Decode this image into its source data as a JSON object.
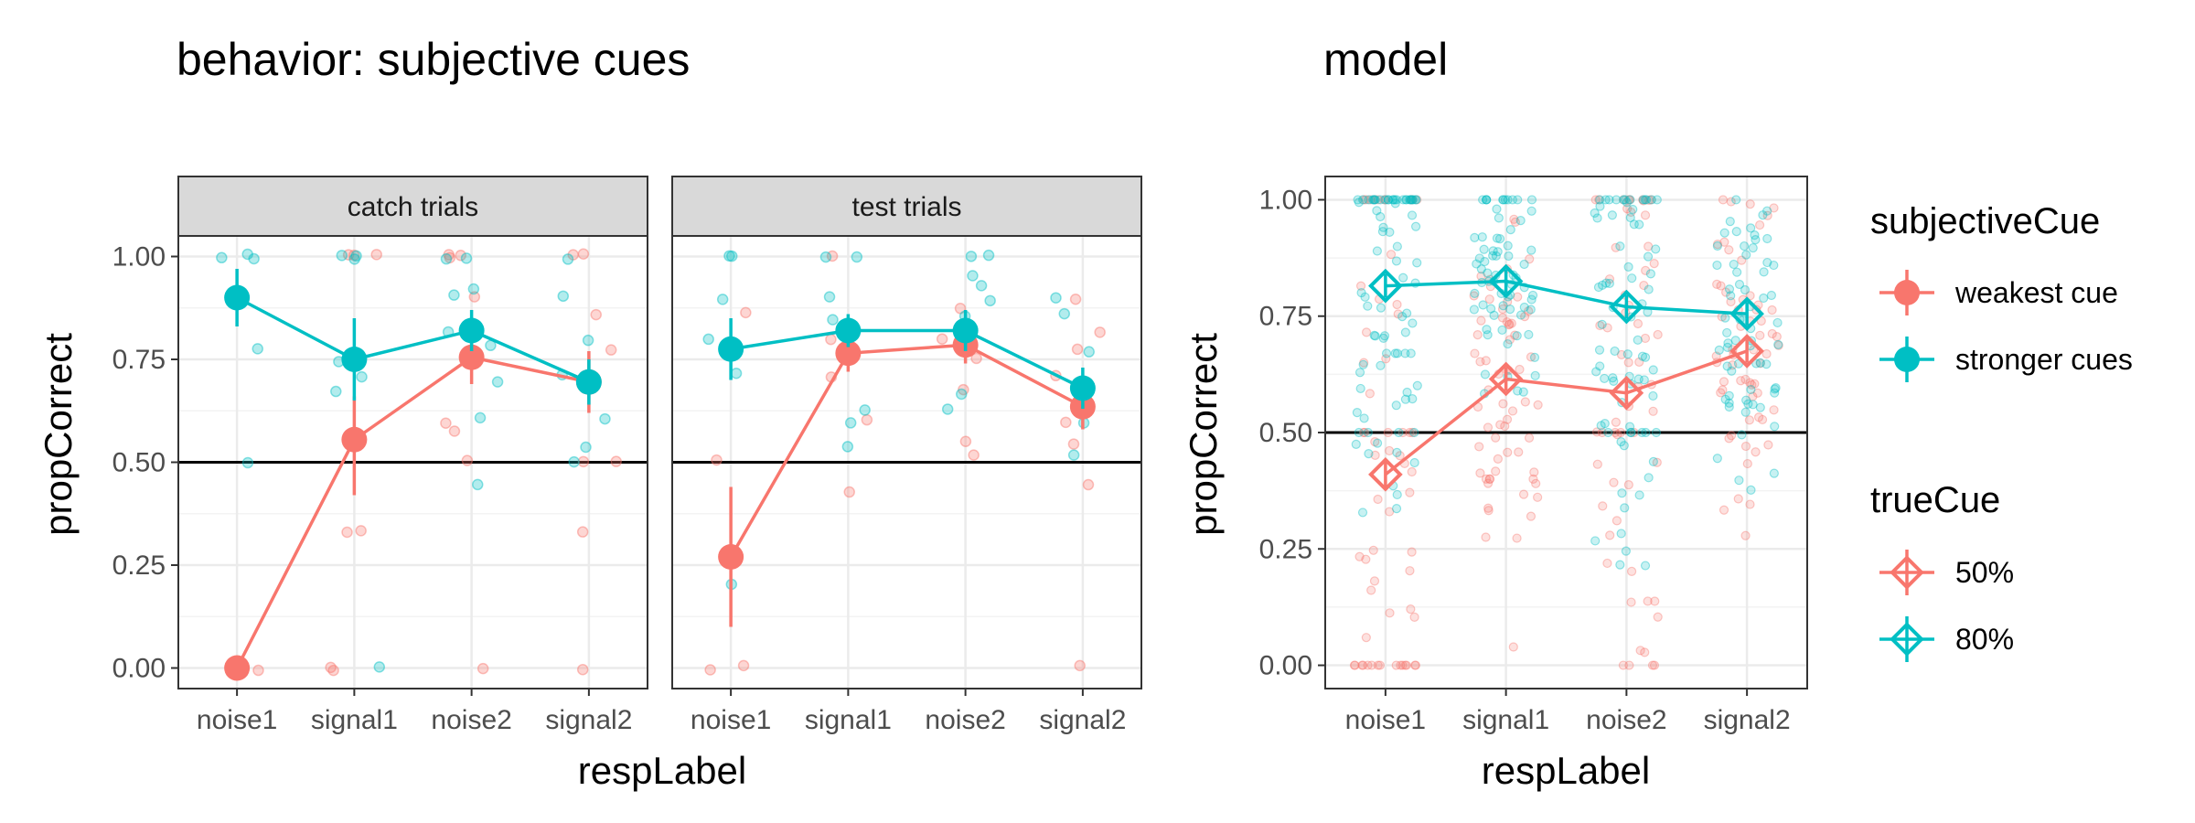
{
  "figure": {
    "title_left": "behavior: subjective cues",
    "title_right": "model"
  },
  "colors": {
    "weak": "#F8766D",
    "strong": "#00BFC4",
    "grid": "#ebebeb",
    "strip_fill": "#d9d9d9"
  },
  "legend": {
    "subjective_title": "subjectiveCue",
    "subjective_items": [
      "weakest cue",
      "stronger cues"
    ],
    "true_title": "trueCue",
    "true_items": [
      "50%",
      "80%"
    ]
  },
  "chart_data": [
    {
      "type": "line",
      "panel": "behavior",
      "facet": "catch trials",
      "xlabel": "respLabel",
      "ylabel": "propCorrect",
      "categories": [
        "noise1",
        "signal1",
        "noise2",
        "signal2"
      ],
      "ylim": [
        -0.05,
        1.05
      ],
      "yticks": [
        "0.00",
        "0.25",
        "0.50",
        "0.75",
        "1.00"
      ],
      "hline": 0.5,
      "series": [
        {
          "name": "weakest cue",
          "color_key": "weak",
          "values": [
            0.0,
            0.555,
            0.755,
            0.695
          ],
          "err": [
            [
              0.0,
              0.0
            ],
            [
              0.42,
              0.66
            ],
            [
              0.69,
              0.82
            ],
            [
              0.62,
              0.77
            ]
          ]
        },
        {
          "name": "stronger cues",
          "color_key": "strong",
          "values": [
            0.9,
            0.75,
            0.82,
            0.695
          ],
          "err": [
            [
              0.83,
              0.97
            ],
            [
              0.65,
              0.85
            ],
            [
              0.77,
              0.87
            ],
            [
              0.64,
              0.75
            ]
          ]
        }
      ],
      "raw_points": {
        "weak": [
          [
            0,
            0
          ],
          [
            1,
            0
          ],
          [
            1,
            1
          ],
          [
            1,
            0.33
          ],
          [
            1,
            0.33
          ],
          [
            1,
            0
          ],
          [
            1,
            1
          ],
          [
            1,
            1
          ],
          [
            2,
            1
          ],
          [
            2,
            1
          ],
          [
            2,
            0.6
          ],
          [
            2,
            0.58
          ],
          [
            2,
            0.5
          ],
          [
            2,
            0.9
          ],
          [
            2,
            0
          ],
          [
            2,
            1
          ],
          [
            3,
            1
          ],
          [
            3,
            0.5
          ],
          [
            3,
            0.86
          ],
          [
            3,
            0.77
          ],
          [
            3,
            0.33
          ],
          [
            3,
            0
          ],
          [
            3,
            0.5
          ],
          [
            3,
            1
          ]
        ],
        "strong": [
          [
            0,
            1
          ],
          [
            0,
            1
          ],
          [
            0,
            1
          ],
          [
            0,
            0.78
          ],
          [
            0,
            0.5
          ],
          [
            1,
            1
          ],
          [
            1,
            1
          ],
          [
            1,
            0.67
          ],
          [
            1,
            0.71
          ],
          [
            1,
            0.75
          ],
          [
            1,
            0
          ],
          [
            1,
            1
          ],
          [
            2,
            1
          ],
          [
            2,
            1
          ],
          [
            2,
            0.92
          ],
          [
            2,
            0.82
          ],
          [
            2,
            0.78
          ],
          [
            2,
            0.69
          ],
          [
            2,
            0.61
          ],
          [
            2,
            0.45
          ],
          [
            2,
            0.91
          ],
          [
            3,
            1
          ],
          [
            3,
            0.91
          ],
          [
            3,
            0.8
          ],
          [
            3,
            0.6
          ],
          [
            3,
            0.53
          ],
          [
            3,
            0.5
          ],
          [
            3,
            0.71
          ]
        ]
      }
    },
    {
      "type": "line",
      "panel": "behavior",
      "facet": "test trials",
      "xlabel": "respLabel",
      "ylabel": "propCorrect",
      "categories": [
        "noise1",
        "signal1",
        "noise2",
        "signal2"
      ],
      "ylim": [
        -0.05,
        1.05
      ],
      "yticks": [
        "0.00",
        "0.25",
        "0.50",
        "0.75",
        "1.00"
      ],
      "hline": 0.5,
      "series": [
        {
          "name": "weakest cue",
          "color_key": "weak",
          "values": [
            0.27,
            0.765,
            0.785,
            0.635
          ],
          "err": [
            [
              0.1,
              0.44
            ],
            [
              0.72,
              0.81
            ],
            [
              0.74,
              0.83
            ],
            [
              0.58,
              0.69
            ]
          ]
        },
        {
          "name": "stronger cues",
          "color_key": "strong",
          "values": [
            0.775,
            0.82,
            0.82,
            0.68
          ],
          "err": [
            [
              0.7,
              0.85
            ],
            [
              0.78,
              0.86
            ],
            [
              0.77,
              0.87
            ],
            [
              0.63,
              0.73
            ]
          ]
        }
      ],
      "raw_points": {
        "weak": [
          [
            0,
            0
          ],
          [
            0,
            0
          ],
          [
            0,
            0.5
          ],
          [
            0,
            0.86
          ],
          [
            1,
            0.43
          ],
          [
            1,
            1
          ],
          [
            1,
            0.8
          ],
          [
            1,
            0.71
          ],
          [
            1,
            0.6
          ],
          [
            2,
            0.75
          ],
          [
            2,
            0.8
          ],
          [
            2,
            0.67
          ],
          [
            2,
            0.52
          ],
          [
            2,
            0.55
          ],
          [
            2,
            0.88
          ],
          [
            3,
            0.89
          ],
          [
            3,
            0.82
          ],
          [
            3,
            0.71
          ],
          [
            3,
            0.6
          ],
          [
            3,
            0.55
          ],
          [
            3,
            0.45
          ],
          [
            3,
            0
          ],
          [
            3,
            0.77
          ]
        ],
        "strong": [
          [
            0,
            1
          ],
          [
            0,
            1
          ],
          [
            0,
            0.9
          ],
          [
            0,
            0.8
          ],
          [
            0,
            0.71
          ],
          [
            0,
            0.2
          ],
          [
            1,
            1
          ],
          [
            1,
            0.9
          ],
          [
            1,
            0.85
          ],
          [
            1,
            0.6
          ],
          [
            1,
            0.54
          ],
          [
            1,
            0.63
          ],
          [
            1,
            1
          ],
          [
            2,
            1
          ],
          [
            2,
            1
          ],
          [
            2,
            0.95
          ],
          [
            2,
            0.93
          ],
          [
            2,
            0.89
          ],
          [
            2,
            0.85
          ],
          [
            2,
            0.67
          ],
          [
            2,
            0.63
          ],
          [
            3,
            0.9
          ],
          [
            3,
            0.86
          ],
          [
            3,
            0.77
          ],
          [
            3,
            0.6
          ],
          [
            3,
            0.52
          ]
        ]
      }
    },
    {
      "type": "line",
      "panel": "model",
      "facet": "",
      "xlabel": "respLabel",
      "ylabel": "propCorrect",
      "categories": [
        "noise1",
        "signal1",
        "noise2",
        "signal2"
      ],
      "ylim": [
        -0.05,
        1.05
      ],
      "yticks": [
        "0.00",
        "0.25",
        "0.50",
        "0.75",
        "1.00"
      ],
      "hline": 0.5,
      "series": [
        {
          "name": "50%",
          "color_key": "weak",
          "values": [
            0.41,
            0.615,
            0.585,
            0.675
          ],
          "err": [
            [
              0.38,
              0.44
            ],
            [
              0.59,
              0.64
            ],
            [
              0.56,
              0.61
            ],
            [
              0.65,
              0.7
            ]
          ]
        },
        {
          "name": "80%",
          "color_key": "strong",
          "values": [
            0.815,
            0.825,
            0.77,
            0.755
          ],
          "err": [
            [
              0.79,
              0.84
            ],
            [
              0.8,
              0.85
            ],
            [
              0.745,
              0.795
            ],
            [
              0.73,
              0.78
            ]
          ]
        }
      ]
    }
  ]
}
